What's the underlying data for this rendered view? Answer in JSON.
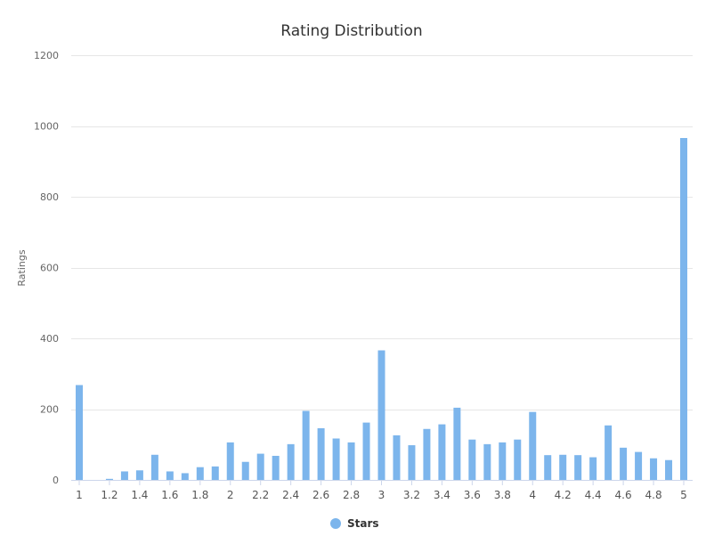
{
  "chart_data": {
    "type": "bar",
    "title": "Rating Distribution",
    "xlabel": "",
    "ylabel": "Ratings",
    "ylim": [
      0,
      1200
    ],
    "yticks": [
      0,
      200,
      400,
      600,
      800,
      1000,
      1200
    ],
    "x_tick_labels": [
      "1",
      "1.2",
      "1.4",
      "1.6",
      "1.8",
      "2",
      "2.2",
      "2.4",
      "2.6",
      "2.8",
      "3",
      "3.2",
      "3.4",
      "3.6",
      "3.8",
      "4",
      "4.2",
      "4.4",
      "4.6",
      "4.8",
      "5"
    ],
    "grid": true,
    "legend_position": "bottom-center",
    "color": "#7cb5ec",
    "categories": [
      "1",
      "1.1",
      "1.2",
      "1.3",
      "1.4",
      "1.5",
      "1.6",
      "1.7",
      "1.8",
      "1.9",
      "2",
      "2.1",
      "2.2",
      "2.3",
      "2.4",
      "2.5",
      "2.6",
      "2.7",
      "2.8",
      "2.9",
      "3",
      "3.1",
      "3.2",
      "3.3",
      "3.4",
      "3.5",
      "3.6",
      "3.7",
      "3.8",
      "3.9",
      "4",
      "4.1",
      "4.2",
      "4.3",
      "4.4",
      "4.5",
      "4.6",
      "4.7",
      "4.8",
      "4.9",
      "5"
    ],
    "series": [
      {
        "name": "Stars",
        "values": [
          268,
          0,
          3,
          24,
          27,
          71,
          24,
          19,
          36,
          38,
          106,
          51,
          74,
          68,
          101,
          195,
          146,
          117,
          106,
          162,
          366,
          126,
          98,
          144,
          157,
          204,
          114,
          101,
          106,
          114,
          192,
          70,
          71,
          70,
          64,
          154,
          91,
          79,
          61,
          56,
          966
        ]
      }
    ]
  }
}
